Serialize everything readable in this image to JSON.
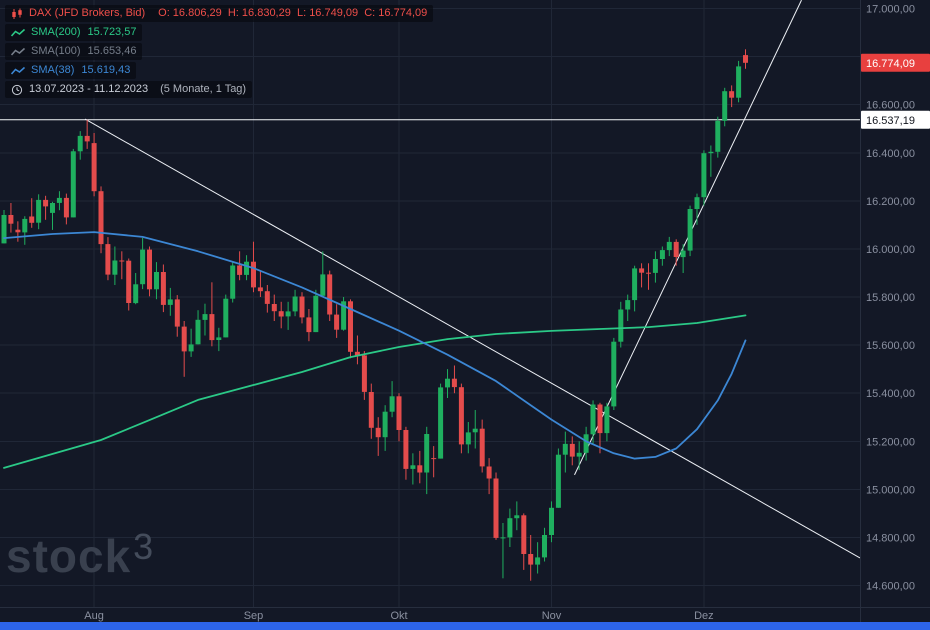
{
  "legend": {
    "symbol": {
      "title": "DAX (JFD Brokers, Bid)",
      "ohlc": "O: 16.806,29  H: 16.830,29  L: 16.749,09  C: 16.774,09",
      "color": "#ef4f4a"
    },
    "indicators": [
      {
        "name": "SMA(200)",
        "value": "15.723,57",
        "color": "#2bc987"
      },
      {
        "name": "SMA(100)",
        "value": "15.653,46",
        "color": "#767e8a"
      },
      {
        "name": "SMA(38)",
        "value": "15.619,43",
        "color": "#3c87d4"
      }
    ],
    "range": {
      "text": "13.07.2023 - 11.12.2023",
      "suffix": "(5 Monate, 1 Tag)",
      "color": "#c9ced8"
    }
  },
  "watermark": {
    "brand": "stock",
    "sup": "3"
  },
  "chart_data": {
    "type": "candlestick",
    "symbol": "DAX (JFD Brokers, Bid)",
    "period": "1 Tag",
    "date_range": "13.07.2023 - 11.12.2023",
    "ylim": [
      14470,
      17035
    ],
    "colors": {
      "up": "#1faf5f",
      "down": "#e44c4c",
      "grid": "#202737",
      "axis_text": "#8a90a0",
      "axis_line": "#272e3e",
      "scrollbar": "#2d64e8",
      "trendline": "#eef1f6",
      "level_line": "#f5f7fa"
    },
    "price_axis_ticks": [
      {
        "value": 17000,
        "label": "17.000,00"
      },
      {
        "value": 16800,
        "label": "16.800,00"
      },
      {
        "value": 16600,
        "label": "16.600,00"
      },
      {
        "value": 16400,
        "label": "16.400,00"
      },
      {
        "value": 16200,
        "label": "16.200,00"
      },
      {
        "value": 16000,
        "label": "16.000,00"
      },
      {
        "value": 15800,
        "label": "15.800,00"
      },
      {
        "value": 15600,
        "label": "15.600,00"
      },
      {
        "value": 15400,
        "label": "15.400,00"
      },
      {
        "value": 15200,
        "label": "15.200,00"
      },
      {
        "value": 15000,
        "label": "15.000,00"
      },
      {
        "value": 14800,
        "label": "14.800,00"
      },
      {
        "value": 14600,
        "label": "14.600,00"
      }
    ],
    "x_axis_months": [
      {
        "index": 13,
        "label": "Aug"
      },
      {
        "index": 36,
        "label": "Sep"
      },
      {
        "index": 57,
        "label": "Okt"
      },
      {
        "index": 79,
        "label": "Nov"
      },
      {
        "index": 101,
        "label": "Dez"
      }
    ],
    "candles": [
      [
        16023,
        16162,
        16023,
        16141
      ],
      [
        16141,
        16191,
        16068,
        16105
      ],
      [
        16080,
        16115,
        16030,
        16069
      ],
      [
        16069,
        16136,
        16017,
        16125
      ],
      [
        16135,
        16211,
        16088,
        16109
      ],
      [
        16109,
        16227,
        16082,
        16204
      ],
      [
        16204,
        16221,
        16121,
        16177
      ],
      [
        16150,
        16196,
        16079,
        16191
      ],
      [
        16191,
        16240,
        16161,
        16212
      ],
      [
        16212,
        16230,
        16102,
        16131
      ],
      [
        16131,
        16416,
        16131,
        16406
      ],
      [
        16406,
        16490,
        16371,
        16470
      ],
      [
        16470,
        16537,
        16416,
        16447
      ],
      [
        16440,
        16482,
        16219,
        16240
      ],
      [
        16240,
        16260,
        15982,
        16020
      ],
      [
        16020,
        16049,
        15870,
        15893
      ],
      [
        15893,
        16010,
        15850,
        15952
      ],
      [
        15952,
        15990,
        15874,
        15951
      ],
      [
        15951,
        15960,
        15744,
        15775
      ],
      [
        15775,
        15900,
        15770,
        15853
      ],
      [
        15853,
        16046,
        15833,
        15997
      ],
      [
        15997,
        16010,
        15803,
        15832
      ],
      [
        15832,
        15945,
        15791,
        15904
      ],
      [
        15904,
        15935,
        15737,
        15767
      ],
      [
        15767,
        15838,
        15722,
        15790
      ],
      [
        15790,
        15808,
        15635,
        15677
      ],
      [
        15677,
        15700,
        15468,
        15574
      ],
      [
        15574,
        15668,
        15551,
        15603
      ],
      [
        15603,
        15745,
        15603,
        15705
      ],
      [
        15705,
        15772,
        15640,
        15729
      ],
      [
        15729,
        15861,
        15595,
        15621
      ],
      [
        15621,
        15672,
        15575,
        15632
      ],
      [
        15632,
        15810,
        15632,
        15793
      ],
      [
        15793,
        15945,
        15777,
        15931
      ],
      [
        15931,
        15990,
        15870,
        15892
      ],
      [
        15892,
        15974,
        15870,
        15947
      ],
      [
        15947,
        16030,
        15820,
        15840
      ],
      [
        15840,
        15910,
        15800,
        15824
      ],
      [
        15824,
        15850,
        15735,
        15771
      ],
      [
        15771,
        15810,
        15700,
        15741
      ],
      [
        15741,
        15780,
        15670,
        15719
      ],
      [
        15719,
        15780,
        15663,
        15740
      ],
      [
        15740,
        15830,
        15720,
        15802
      ],
      [
        15802,
        15820,
        15690,
        15715
      ],
      [
        15715,
        15750,
        15616,
        15654
      ],
      [
        15654,
        15830,
        15654,
        15805
      ],
      [
        15805,
        15990,
        15805,
        15894
      ],
      [
        15894,
        15910,
        15700,
        15727
      ],
      [
        15727,
        15770,
        15630,
        15664
      ],
      [
        15664,
        15800,
        15660,
        15782
      ],
      [
        15782,
        15790,
        15545,
        15572
      ],
      [
        15572,
        15640,
        15520,
        15557
      ],
      [
        15557,
        15575,
        15372,
        15405
      ],
      [
        15405,
        15440,
        15210,
        15256
      ],
      [
        15256,
        15300,
        15139,
        15217
      ],
      [
        15217,
        15350,
        15160,
        15323
      ],
      [
        15323,
        15450,
        15300,
        15387
      ],
      [
        15387,
        15400,
        15200,
        15247
      ],
      [
        15247,
        15260,
        15040,
        15085
      ],
      [
        15085,
        15150,
        15020,
        15100
      ],
      [
        15100,
        15160,
        15025,
        15070
      ],
      [
        15070,
        15260,
        14980,
        15230
      ],
      [
        15130,
        15180,
        15050,
        15128
      ],
      [
        15128,
        15440,
        15128,
        15424
      ],
      [
        15424,
        15500,
        15380,
        15460
      ],
      [
        15460,
        15515,
        15400,
        15425
      ],
      [
        15425,
        15440,
        15150,
        15187
      ],
      [
        15187,
        15280,
        15150,
        15237
      ],
      [
        15237,
        15330,
        15170,
        15252
      ],
      [
        15252,
        15290,
        15070,
        15095
      ],
      [
        15095,
        15130,
        14980,
        15045
      ],
      [
        15045,
        15070,
        14790,
        14798
      ],
      [
        14798,
        14860,
        14630,
        14800
      ],
      [
        14800,
        14920,
        14760,
        14880
      ],
      [
        14880,
        14950,
        14830,
        14892
      ],
      [
        14892,
        14900,
        14665,
        14731
      ],
      [
        14731,
        14810,
        14620,
        14687
      ],
      [
        14687,
        14780,
        14650,
        14717
      ],
      [
        14717,
        14840,
        14700,
        14810
      ],
      [
        14810,
        14950,
        14780,
        14923
      ],
      [
        14923,
        15170,
        14923,
        15144
      ],
      [
        15144,
        15240,
        15070,
        15189
      ],
      [
        15189,
        15220,
        15100,
        15136
      ],
      [
        15136,
        15200,
        15080,
        15152
      ],
      [
        15152,
        15260,
        15120,
        15229
      ],
      [
        15229,
        15370,
        15190,
        15353
      ],
      [
        15353,
        15360,
        15150,
        15234
      ],
      [
        15234,
        15360,
        15200,
        15345
      ],
      [
        15345,
        15630,
        15330,
        15614
      ],
      [
        15614,
        15780,
        15590,
        15748
      ],
      [
        15748,
        15810,
        15700,
        15787
      ],
      [
        15787,
        15930,
        15740,
        15919
      ],
      [
        15919,
        15940,
        15840,
        15901
      ],
      [
        15901,
        15940,
        15830,
        15900
      ],
      [
        15900,
        15990,
        15860,
        15958
      ],
      [
        15958,
        16010,
        15930,
        15995
      ],
      [
        15995,
        16050,
        15970,
        16029
      ],
      [
        16029,
        16040,
        15930,
        15966
      ],
      [
        15966,
        16020,
        15900,
        15993
      ],
      [
        15993,
        16180,
        15970,
        16166
      ],
      [
        16166,
        16230,
        16100,
        16215
      ],
      [
        16215,
        16410,
        16180,
        16398
      ],
      [
        16398,
        16430,
        16300,
        16404
      ],
      [
        16404,
        16550,
        16380,
        16533
      ],
      [
        16533,
        16670,
        16510,
        16656
      ],
      [
        16656,
        16680,
        16590,
        16629
      ],
      [
        16629,
        16782,
        16610,
        16759
      ],
      [
        16806.29,
        16830.29,
        16749.09,
        16774.09
      ]
    ],
    "overlays": [
      {
        "name": "SMA(200)",
        "color": "#2bc987",
        "visible": true,
        "last_value": 15723.57,
        "points": [
          [
            0,
            15089
          ],
          [
            14,
            15205
          ],
          [
            21,
            15288
          ],
          [
            28,
            15372
          ],
          [
            35,
            15426
          ],
          [
            43,
            15488
          ],
          [
            50,
            15550
          ],
          [
            57,
            15592
          ],
          [
            64,
            15625
          ],
          [
            71,
            15646
          ],
          [
            79,
            15659
          ],
          [
            86,
            15667
          ],
          [
            93,
            15675
          ],
          [
            100,
            15692
          ],
          [
            107,
            15723.57
          ]
        ]
      },
      {
        "name": "SMA(100)",
        "color": "#767e8a",
        "visible": false,
        "last_value": 15653.46,
        "points": []
      },
      {
        "name": "SMA(38)",
        "color": "#3c87d4",
        "visible": true,
        "last_value": 15619.43,
        "points": [
          [
            0,
            16045
          ],
          [
            7,
            16062
          ],
          [
            13,
            16070
          ],
          [
            20,
            16050
          ],
          [
            28,
            15990
          ],
          [
            36,
            15920
          ],
          [
            43,
            15840
          ],
          [
            50,
            15750
          ],
          [
            57,
            15660
          ],
          [
            64,
            15560
          ],
          [
            71,
            15450
          ],
          [
            76,
            15350
          ],
          [
            79,
            15290
          ],
          [
            84,
            15200
          ],
          [
            88,
            15150
          ],
          [
            91,
            15128
          ],
          [
            94,
            15135
          ],
          [
            97,
            15170
          ],
          [
            100,
            15250
          ],
          [
            103,
            15370
          ],
          [
            105,
            15480
          ],
          [
            107,
            15619.43
          ]
        ]
      }
    ],
    "annotations": {
      "horizontal_line": {
        "price": 16537.19,
        "label": "16.537,19",
        "color": "#f5f7fa"
      },
      "trendlines": [
        {
          "name": "descending",
          "x1f": 0.099,
          "p1": 16540,
          "x2f": 1.0,
          "p2": 14715
        },
        {
          "name": "ascending",
          "x1f": 0.668,
          "p1": 15060,
          "x2f": 0.932,
          "p2": 17035
        }
      ],
      "last_price": {
        "price": 16774.09,
        "label": "16.774,09",
        "color": "#e8403f"
      }
    }
  }
}
